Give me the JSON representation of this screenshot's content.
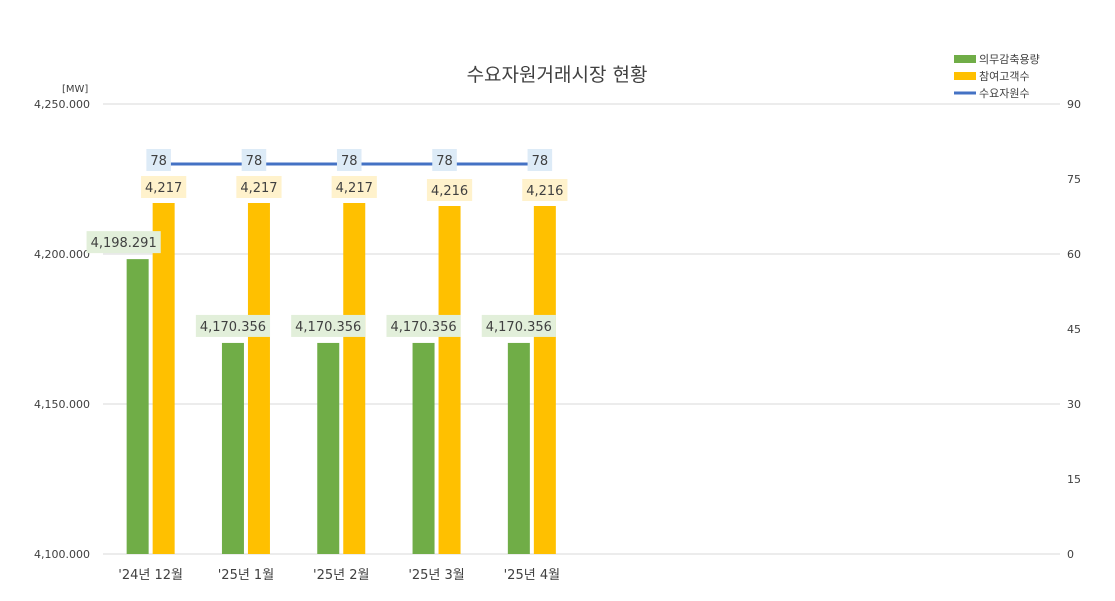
{
  "chart_data": {
    "type": "bar",
    "title": "수요자원거래시장 현황",
    "unit_label": "[MW]",
    "categories": [
      "'24년 12월",
      "'25년 1월",
      "'25년 2월",
      "'25년 3월",
      "'25년 4월"
    ],
    "series": [
      {
        "name": "의무감축용량",
        "kind": "bar",
        "axis": "left",
        "color": "#70AD47",
        "label_bg": "#E2EFDA",
        "values": [
          4198.291,
          4170.356,
          4170.356,
          4170.356,
          4170.356
        ],
        "labels": [
          "4,198.291",
          "4,170.356",
          "4,170.356",
          "4,170.356",
          "4,170.356"
        ]
      },
      {
        "name": "참여고객수",
        "kind": "bar",
        "axis": "left",
        "color": "#FFC000",
        "label_bg": "#FFF2CC",
        "values": [
          4217,
          4217,
          4217,
          4216,
          4216
        ],
        "labels": [
          "4,217",
          "4,217",
          "4,217",
          "4,216",
          "4,216"
        ]
      },
      {
        "name": "수요자원수",
        "kind": "line",
        "axis": "right",
        "color": "#4472C4",
        "label_bg": "#DDEBF7",
        "values": [
          78,
          78,
          78,
          78,
          78
        ],
        "labels": [
          "78",
          "78",
          "78",
          "78",
          "78"
        ]
      }
    ],
    "y_left": {
      "min": 4100,
      "max": 4250,
      "ticks": [
        4100,
        4150,
        4200,
        4250
      ],
      "tick_labels": [
        "4,100.000",
        "4,150.000",
        "4,200.000",
        "4,250.000"
      ]
    },
    "y_right": {
      "min": 0,
      "max": 90,
      "ticks": [
        0,
        15,
        30,
        45,
        60,
        75,
        90
      ],
      "tick_labels": [
        "0",
        "15",
        "30",
        "45",
        "60",
        "75",
        "90"
      ]
    },
    "grid": true,
    "legend_position": "top-right"
  }
}
